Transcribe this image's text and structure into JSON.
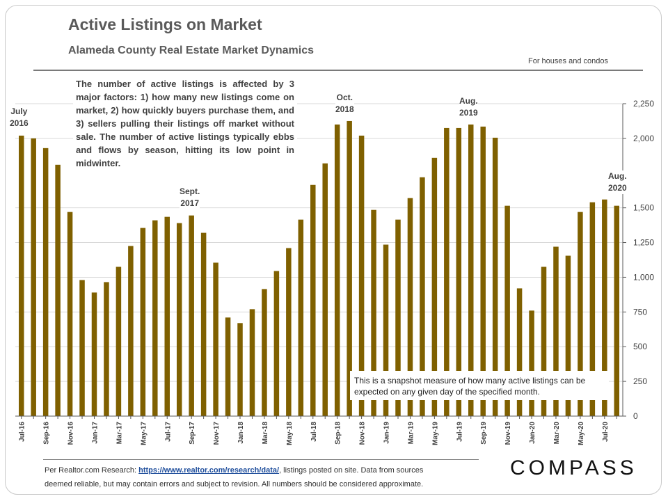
{
  "header": {
    "title": "Active Listings on Market",
    "subtitle": "Alameda County Real Estate Market Dynamics",
    "note": "For houses and condos"
  },
  "callout_text": "The number of active listings is affected by 3 major factors: 1) how many new listings come on market, 2) how quickly buyers purchase them, and 3) sellers pulling their listings off market without sale. The number of active listings typically ebbs and flows by season, hitting its low point in midwinter.",
  "snapshot_text": "This is a snapshot measure of how many active listings can be expected on any given day of the specified month.",
  "annotations": [
    {
      "line1": "July",
      "line2": "2016"
    },
    {
      "line1": "Sept.",
      "line2": "2017"
    },
    {
      "line1": "Oct.",
      "line2": "2018"
    },
    {
      "line1": "Aug.",
      "line2": "2019"
    },
    {
      "line1": "Aug.",
      "line2": "2020"
    }
  ],
  "footer": {
    "prefix": "Per Realtor.com Research:  ",
    "link": "https://www.realtor.com/research/data/",
    "line1_suffix": ", listings posted on site. Data from sources",
    "line2": "deemed reliable, but may contain errors and subject to revision.  All numbers should be considered approximate."
  },
  "logo": "COMPASS",
  "colors": {
    "bar": "#7f6000",
    "grid": "#d9d9d9",
    "axis_text": "#404040"
  },
  "chart_data": {
    "type": "bar",
    "title": "Active Listings on Market",
    "subtitle": "Alameda County Real Estate Market Dynamics",
    "y_axis_position": "right",
    "ylim": [
      0,
      2250
    ],
    "yticks": [
      0,
      250,
      500,
      750,
      1000,
      1250,
      1500,
      2000,
      2250
    ],
    "grid": true,
    "categories": [
      "Jul-16",
      "Aug-16",
      "Sep-16",
      "Oct-16",
      "Nov-16",
      "Dec-16",
      "Jan-17",
      "Feb-17",
      "Mar-17",
      "Apr-17",
      "May-17",
      "Jun-17",
      "Jul-17",
      "Aug-17",
      "Sep-17",
      "Oct-17",
      "Nov-17",
      "Dec-17",
      "Jan-18",
      "Feb-18",
      "Mar-18",
      "Apr-18",
      "May-18",
      "Jun-18",
      "Jul-18",
      "Aug-18",
      "Sep-18",
      "Oct-18",
      "Nov-18",
      "Dec-18",
      "Jan-19",
      "Feb-19",
      "Mar-19",
      "Apr-19",
      "May-19",
      "Jun-19",
      "Jul-19",
      "Aug-19",
      "Sep-19",
      "Oct-19",
      "Nov-19",
      "Dec-19",
      "Jan-20",
      "Feb-20",
      "Mar-20",
      "Apr-20",
      "May-20",
      "Jun-20",
      "Jul-20",
      "Aug-20"
    ],
    "tick_labels": [
      "Jul-16",
      "Sep-16",
      "Nov-16",
      "Jan-17",
      "Mar-17",
      "May-17",
      "Jul-17",
      "Sep-17",
      "Nov-17",
      "Jan-18",
      "Mar-18",
      "May-18",
      "Jul-18",
      "Sep-18",
      "Nov-18",
      "Jan-19",
      "Mar-19",
      "May-19",
      "Jul-19",
      "Sep-19",
      "Nov-19",
      "Jan-20",
      "Mar-20",
      "May-20",
      "Jul-20"
    ],
    "values": [
      2020,
      2000,
      1930,
      1810,
      1470,
      980,
      890,
      965,
      1075,
      1225,
      1355,
      1410,
      1435,
      1390,
      1445,
      1320,
      1105,
      710,
      670,
      770,
      915,
      1045,
      1210,
      1415,
      1665,
      1820,
      2100,
      2125,
      2020,
      1485,
      1235,
      1415,
      1570,
      1720,
      1860,
      2075,
      2075,
      2100,
      2085,
      2005,
      1515,
      920,
      760,
      1075,
      1220,
      1155,
      1470,
      1540,
      1560,
      1515
    ]
  }
}
